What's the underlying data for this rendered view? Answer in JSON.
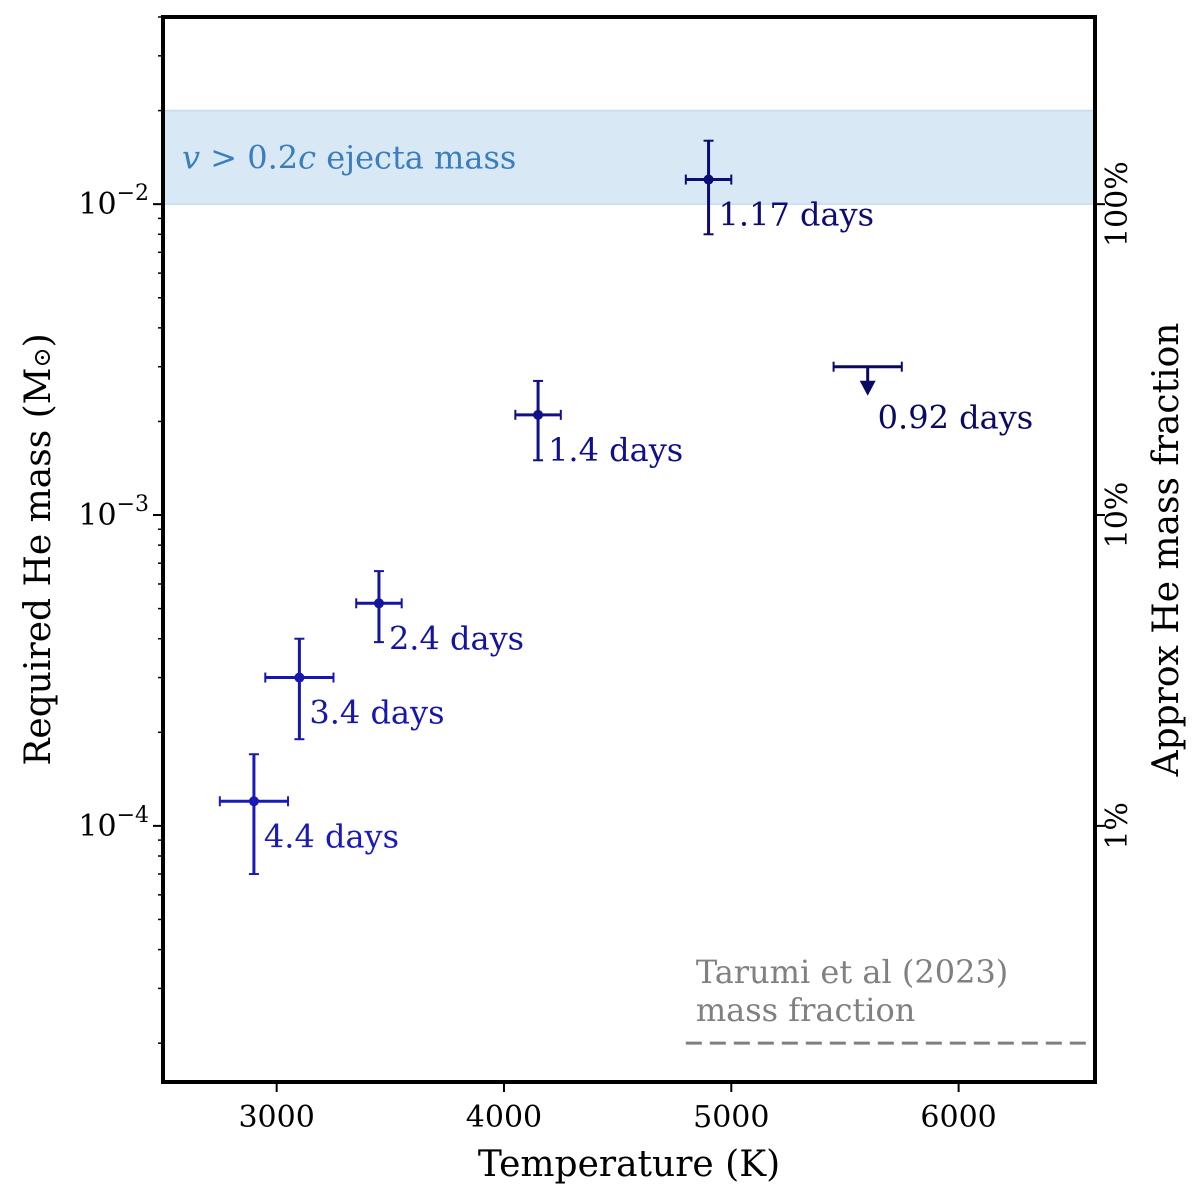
{
  "chart_data": {
    "type": "scatter",
    "xlabel": "Temperature (K)",
    "ylabel_text": "Required He mass (M",
    "ylabel_symbol": "⊙",
    "ylabel_close": ")",
    "y2label": "Approx He mass fraction",
    "xscale": "linear",
    "yscale": "log",
    "xlim": [
      2500,
      6600
    ],
    "ylim": [
      1.5e-05,
      0.04
    ],
    "grid": false,
    "xticks": [
      {
        "value": 3000,
        "label": "3000"
      },
      {
        "value": 4000,
        "label": "4000"
      },
      {
        "value": 5000,
        "label": "5000"
      },
      {
        "value": 6000,
        "label": "6000"
      }
    ],
    "yticks": [
      {
        "value": 0.0001,
        "base": "10",
        "exp": "−4"
      },
      {
        "value": 0.001,
        "base": "10",
        "exp": "−3"
      },
      {
        "value": 0.01,
        "base": "10",
        "exp": "−2"
      }
    ],
    "y2ticks": [
      {
        "value": 0.0001,
        "label": "1%"
      },
      {
        "value": 0.001,
        "label": "10%"
      },
      {
        "value": 0.01,
        "label": "100%"
      }
    ],
    "band": {
      "y_low": 0.01,
      "y_high": 0.02,
      "color": "#d9e8f5",
      "label_v": "v",
      "label_rest": " > 0.2",
      "label_c": "c",
      "label_tail": " ejecta mass",
      "label_color": "#3a7ebf"
    },
    "reference_line": {
      "y": 2e-05,
      "x_start": 4800,
      "color": "#808080",
      "label_line1": "Tarumi et al (2023)",
      "label_line2": "mass fraction"
    },
    "points": [
      {
        "label": "4.4 days",
        "x": 2900,
        "xerr": 150,
        "y": 0.00012,
        "ylow": 7e-05,
        "yhigh": 0.00017,
        "color": "#1a1ab8",
        "upper_limit": false
      },
      {
        "label": "3.4 days",
        "x": 3100,
        "xerr": 150,
        "y": 0.0003,
        "ylow": 0.00019,
        "yhigh": 0.0004,
        "color": "#1717ad",
        "upper_limit": false
      },
      {
        "label": "2.4 days",
        "x": 3450,
        "xerr": 100,
        "y": 0.00052,
        "ylow": 0.00039,
        "yhigh": 0.00066,
        "color": "#14149e",
        "upper_limit": false
      },
      {
        "label": "1.4 days",
        "x": 4150,
        "xerr": 100,
        "y": 0.0021,
        "ylow": 0.0015,
        "yhigh": 0.0027,
        "color": "#10108a",
        "upper_limit": false
      },
      {
        "label": "1.17 days",
        "x": 4900,
        "xerr": 100,
        "y": 0.012,
        "ylow": 0.008,
        "yhigh": 0.016,
        "color": "#0c0c73",
        "upper_limit": false
      },
      {
        "label": "0.92 days",
        "x": 5600,
        "xerr": 150,
        "y": 0.003,
        "color": "#0a0a60",
        "upper_limit": true
      }
    ]
  }
}
